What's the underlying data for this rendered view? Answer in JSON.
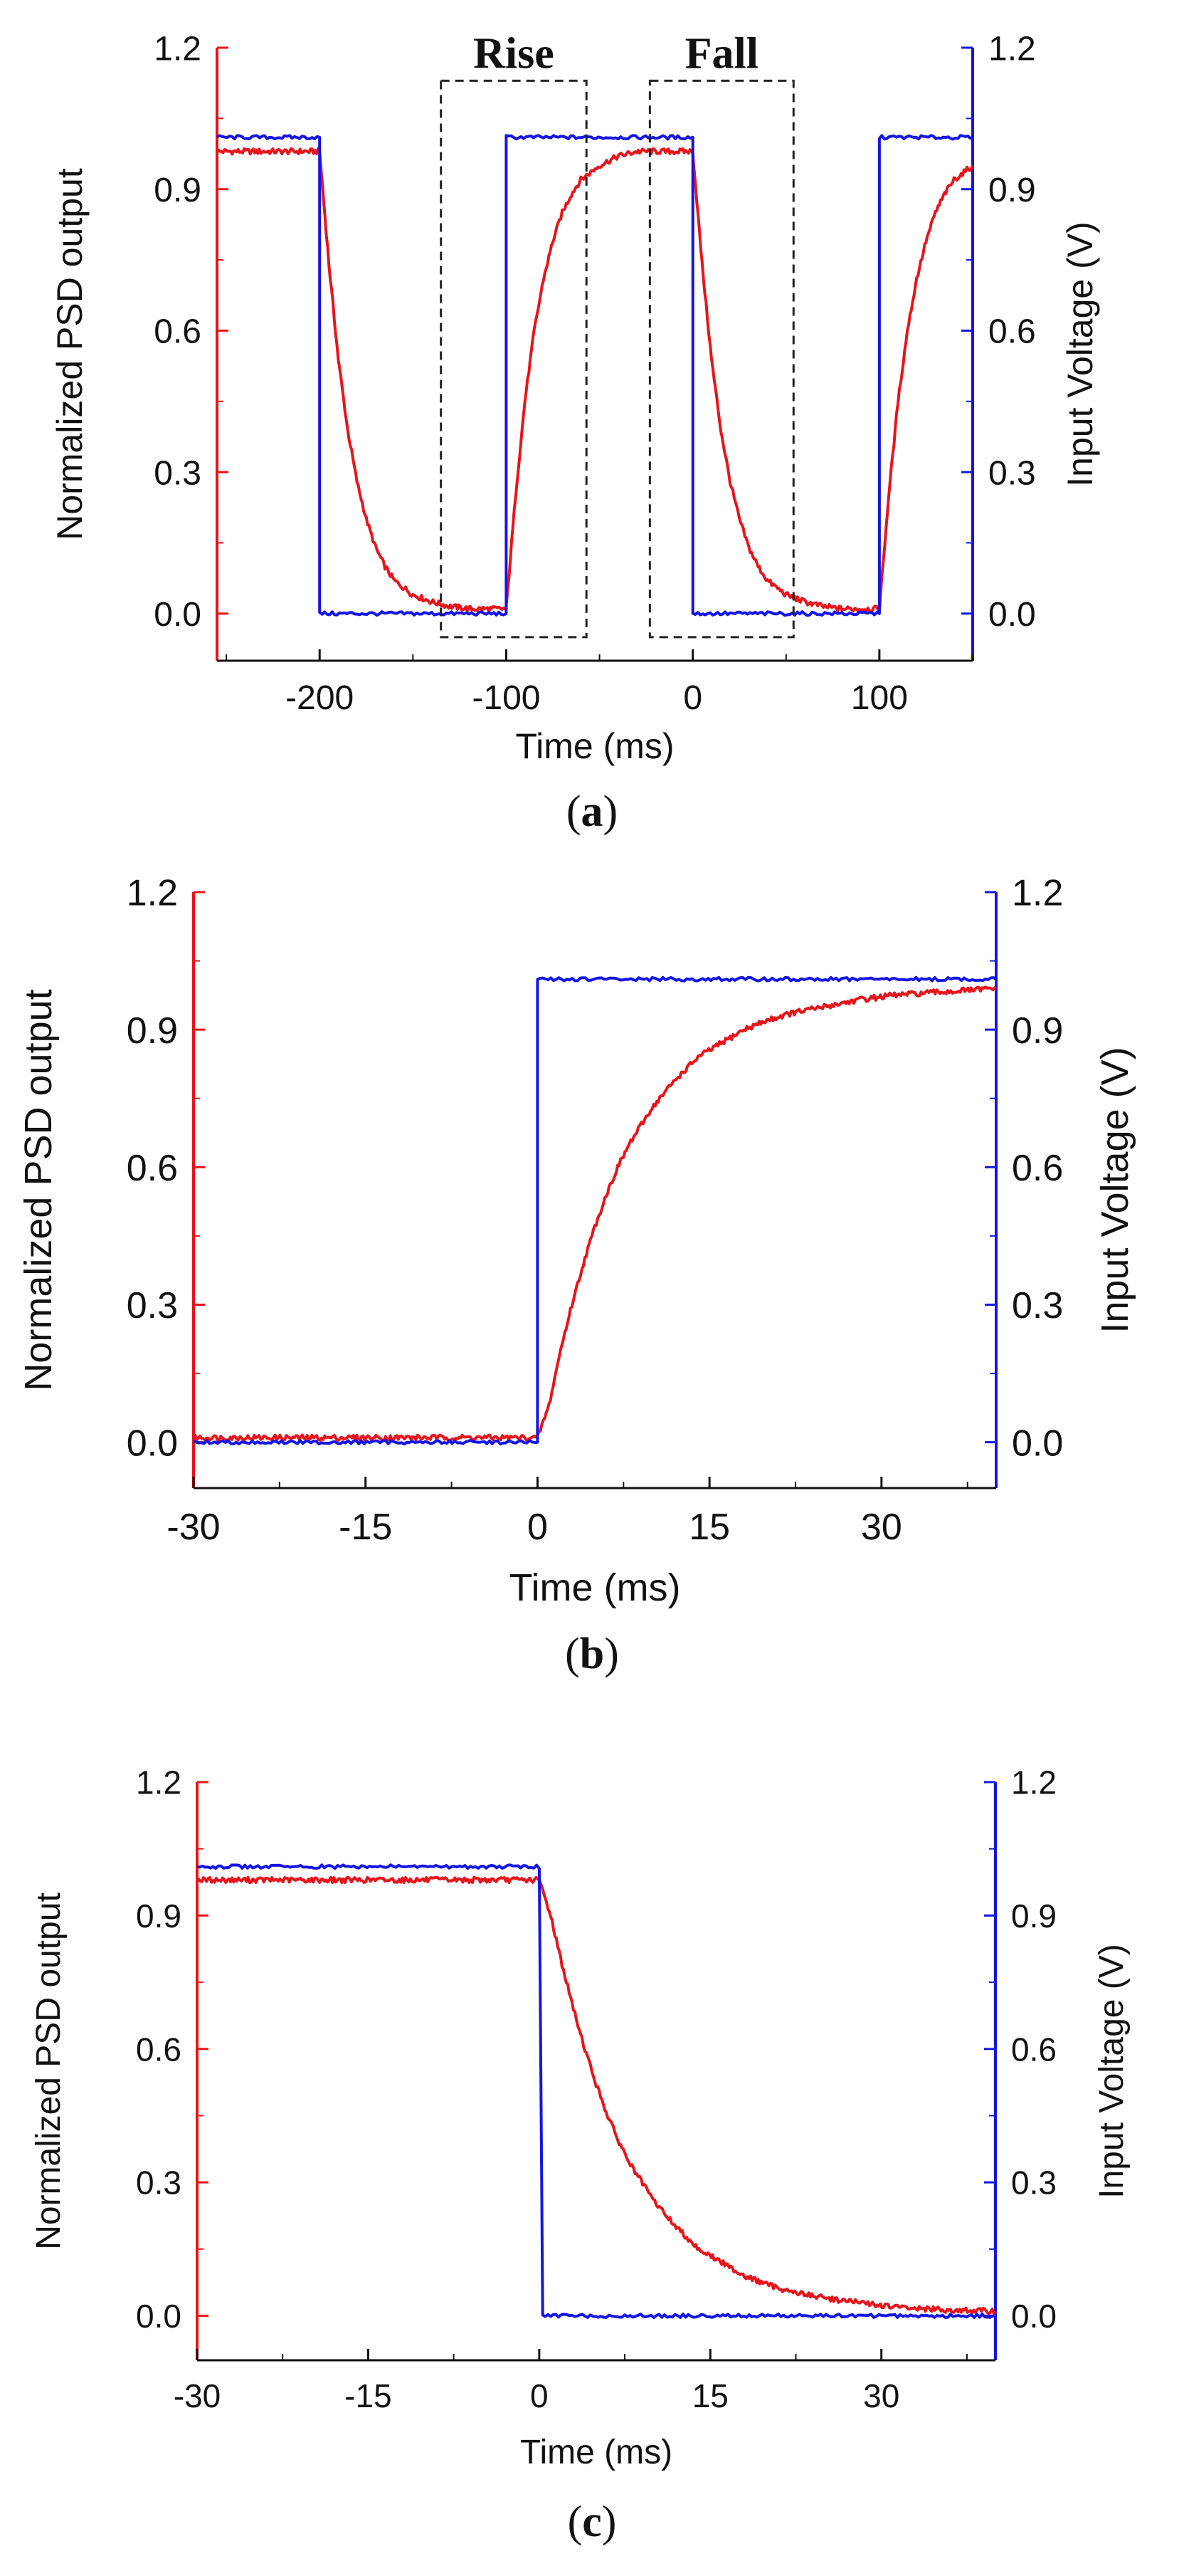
{
  "figure": {
    "left_axis_color": "#e8141b",
    "right_axis_color": "#1414e6",
    "psd_color": "#e8141b",
    "voltage_color": "#1414e6",
    "box_color": "#222222"
  },
  "chart_data": [
    {
      "type": "line",
      "panel": "a",
      "caption": "(a)",
      "caption_parts": [
        "(",
        "a",
        ")"
      ],
      "xlabel": "Time (ms)",
      "ylabel_left": "Normalized PSD output",
      "ylabel_right": "Input Voltage (V)",
      "xlim": [
        -255,
        150
      ],
      "ylim": [
        -0.1,
        1.2
      ],
      "x_ticks": [
        -200,
        -100,
        0,
        100
      ],
      "x_tick_labels": [
        "-200",
        "-100",
        "0",
        "100"
      ],
      "y_ticks": [
        0.0,
        0.3,
        0.6,
        0.9,
        1.2
      ],
      "y_tick_labels": [
        "0.0",
        "0.3",
        "0.6",
        "0.9",
        "1.2"
      ],
      "series": [
        {
          "name": "Normalized PSD output",
          "axis": "left",
          "x": [
            -255,
            -200,
            -195,
            -190,
            -185,
            -180,
            -175,
            -170,
            -165,
            -160,
            -150,
            -140,
            -130,
            -120,
            -110,
            -100,
            -95,
            -90,
            -85,
            -80,
            -75,
            -70,
            -65,
            -60,
            -50,
            -40,
            -30,
            -20,
            -10,
            0,
            5,
            10,
            15,
            20,
            25,
            30,
            35,
            40,
            50,
            60,
            70,
            80,
            90,
            100,
            105,
            110,
            115,
            120,
            125,
            130,
            135,
            140,
            150
          ],
          "y": [
            0.98,
            0.98,
            0.74,
            0.54,
            0.39,
            0.28,
            0.2,
            0.14,
            0.1,
            0.07,
            0.04,
            0.025,
            0.015,
            0.01,
            0.01,
            0.01,
            0.25,
            0.45,
            0.6,
            0.71,
            0.79,
            0.85,
            0.89,
            0.92,
            0.95,
            0.97,
            0.98,
            0.98,
            0.98,
            0.98,
            0.74,
            0.54,
            0.39,
            0.28,
            0.2,
            0.14,
            0.1,
            0.07,
            0.04,
            0.025,
            0.015,
            0.01,
            0.01,
            0.01,
            0.25,
            0.45,
            0.6,
            0.71,
            0.79,
            0.85,
            0.89,
            0.92,
            0.95
          ]
        },
        {
          "name": "Input Voltage (V)",
          "axis": "right",
          "x": [
            -255,
            -200,
            -200,
            -100,
            -100,
            0,
            0,
            100,
            100,
            150
          ],
          "y": [
            1.01,
            1.01,
            0.0,
            0.0,
            1.01,
            1.01,
            0.0,
            0.0,
            1.01,
            1.01
          ]
        }
      ],
      "annotations": [
        {
          "label": "Rise",
          "x_range": [
            -135,
            -57
          ],
          "y_range": [
            -0.05,
            1.13
          ]
        },
        {
          "label": "Fall",
          "x_range": [
            -23,
            54
          ],
          "y_range": [
            -0.05,
            1.13
          ]
        }
      ]
    },
    {
      "type": "line",
      "panel": "b",
      "caption": "(b)",
      "caption_parts": [
        "(",
        "b",
        ")"
      ],
      "xlabel": "Time (ms)",
      "ylabel_left": "Normalized PSD output",
      "ylabel_right": "Input Voltage (V)",
      "xlim": [
        -30,
        40
      ],
      "ylim": [
        -0.1,
        1.2
      ],
      "x_ticks": [
        -30,
        -15,
        0,
        15,
        30
      ],
      "x_tick_labels": [
        "-30",
        "-15",
        "0",
        "15",
        "30"
      ],
      "y_ticks": [
        0.0,
        0.3,
        0.6,
        0.9,
        1.2
      ],
      "y_tick_labels": [
        "0.0",
        "0.3",
        "0.6",
        "0.9",
        "1.2"
      ],
      "series": [
        {
          "name": "Normalized PSD output",
          "axis": "left",
          "x": [
            -30,
            0,
            1,
            2,
            3,
            4,
            5,
            6,
            7,
            8,
            10,
            12,
            14,
            16,
            18,
            20,
            22,
            25,
            28,
            31,
            34,
            37,
            40
          ],
          "y": [
            0.01,
            0.01,
            0.08,
            0.2,
            0.3,
            0.39,
            0.47,
            0.54,
            0.6,
            0.65,
            0.73,
            0.79,
            0.84,
            0.87,
            0.9,
            0.92,
            0.935,
            0.95,
            0.965,
            0.975,
            0.98,
            0.985,
            0.99
          ]
        },
        {
          "name": "Input Voltage (V)",
          "axis": "right",
          "x": [
            -30,
            0,
            0,
            40
          ],
          "y": [
            0.0,
            0.0,
            1.01,
            1.01
          ]
        }
      ]
    },
    {
      "type": "line",
      "panel": "c",
      "caption": "(c)",
      "caption_parts": [
        "(",
        "c",
        ")"
      ],
      "xlabel": "Time (ms)",
      "ylabel_left": "Normalized PSD output",
      "ylabel_right": "Input Voltage (V)",
      "xlim": [
        -30,
        40
      ],
      "ylim": [
        -0.1,
        1.2
      ],
      "x_ticks": [
        -30,
        -15,
        0,
        15,
        30
      ],
      "x_tick_labels": [
        "-30",
        "-15",
        "0",
        "15",
        "30"
      ],
      "y_ticks": [
        0.0,
        0.3,
        0.6,
        0.9,
        1.2
      ],
      "y_tick_labels": [
        "0.0",
        "0.3",
        "0.6",
        "0.9",
        "1.2"
      ],
      "series": [
        {
          "name": "Normalized PSD output",
          "axis": "left",
          "x": [
            -30,
            0,
            1,
            2,
            3,
            4,
            5,
            6,
            7,
            8,
            10,
            12,
            14,
            16,
            18,
            20,
            22,
            25,
            28,
            31,
            34,
            37,
            40
          ],
          "y": [
            0.98,
            0.98,
            0.9,
            0.79,
            0.69,
            0.6,
            0.52,
            0.45,
            0.39,
            0.34,
            0.26,
            0.2,
            0.15,
            0.12,
            0.09,
            0.07,
            0.055,
            0.04,
            0.03,
            0.02,
            0.015,
            0.012,
            0.01
          ]
        },
        {
          "name": "Input Voltage (V)",
          "axis": "right",
          "x": [
            -30,
            0,
            0.3,
            40
          ],
          "y": [
            1.01,
            1.01,
            0.0,
            0.0
          ]
        }
      ]
    }
  ]
}
